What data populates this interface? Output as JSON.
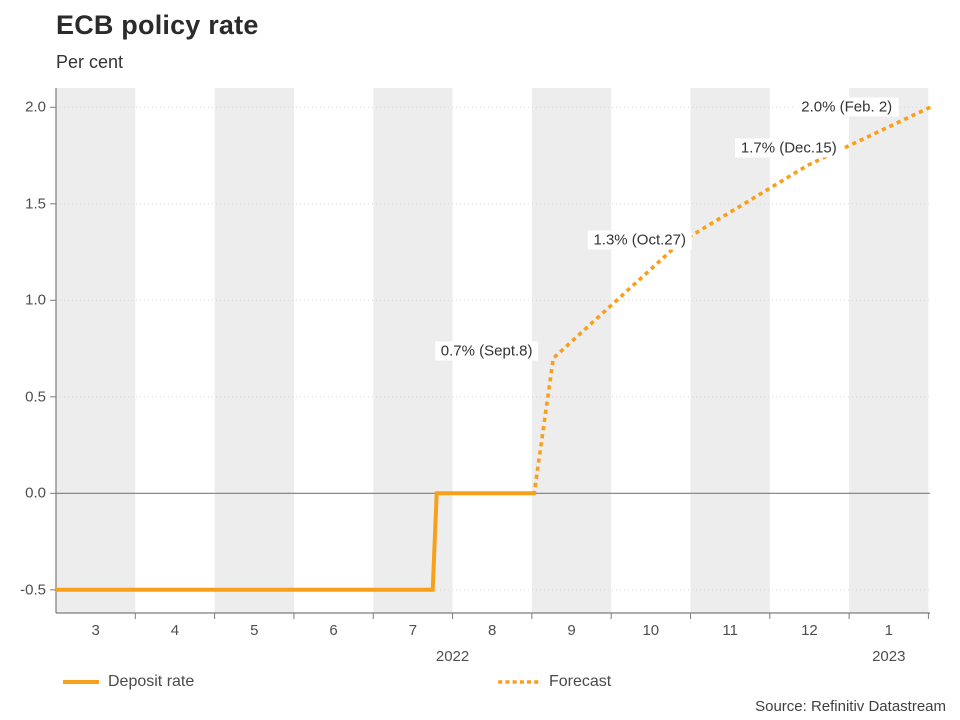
{
  "header": {
    "title": "ECB policy rate",
    "subtitle": "Per cent"
  },
  "source": "Source: Refinitiv Datastream",
  "legend": [
    {
      "label": "Deposit rate",
      "style": "solid"
    },
    {
      "label": "Forecast",
      "style": "dotted"
    }
  ],
  "colors": {
    "line_orange": "#F8A01A",
    "band_gray": "#EDEDED",
    "grid_dotted": "#D8D8D8",
    "zero_line": "#7d7d7d",
    "axis": "#7d7d7d",
    "tick_text": "#4f4f4f"
  },
  "chart_data": {
    "type": "line",
    "title": "ECB policy rate",
    "ylabel": "Per cent",
    "ylim": [
      -0.62,
      2.1
    ],
    "xlim_months": [
      2.5,
      13.52
    ],
    "grid": "horizontal-dotted",
    "legend_position": "bottom",
    "y_ticks": [
      {
        "value": -0.5,
        "label": "-0.5"
      },
      {
        "value": 0.0,
        "label": "0.0"
      },
      {
        "value": 0.5,
        "label": "0.5"
      },
      {
        "value": 1.0,
        "label": "1.0"
      },
      {
        "value": 1.5,
        "label": "1.5"
      },
      {
        "value": 2.0,
        "label": "2.0"
      }
    ],
    "x_ticks": [
      {
        "x": 3,
        "label": "3"
      },
      {
        "x": 4,
        "label": "4"
      },
      {
        "x": 5,
        "label": "5"
      },
      {
        "x": 6,
        "label": "6"
      },
      {
        "x": 7,
        "label": "7"
      },
      {
        "x": 8,
        "label": "8"
      },
      {
        "x": 9,
        "label": "9"
      },
      {
        "x": 10,
        "label": "10"
      },
      {
        "x": 11,
        "label": "11"
      },
      {
        "x": 12,
        "label": "12"
      },
      {
        "x": 13,
        "label": "1"
      }
    ],
    "year_ticks": [
      {
        "x": 7.5,
        "label": "2022"
      },
      {
        "x": 13.0,
        "label": "2023"
      }
    ],
    "shaded_months": [
      3,
      5,
      7,
      9,
      11,
      13
    ],
    "series": [
      {
        "name": "Deposit rate",
        "style": "solid",
        "points": [
          [
            2.5,
            -0.5
          ],
          [
            7.25,
            -0.5
          ],
          [
            7.3,
            0.0
          ],
          [
            8.53,
            0.0
          ]
        ]
      },
      {
        "name": "Forecast",
        "style": "dotted",
        "points": [
          [
            8.53,
            0.0
          ],
          [
            8.77,
            0.7
          ],
          [
            10.37,
            1.3
          ],
          [
            11.98,
            1.7
          ],
          [
            13.52,
            2.0
          ]
        ]
      }
    ],
    "annotations": [
      {
        "text": "0.7% (Sept.8)",
        "x": 7.93,
        "y": 0.74
      },
      {
        "text": "1.3% (Oct.27)",
        "x": 9.86,
        "y": 1.31
      },
      {
        "text": "1.7% (Dec.15)",
        "x": 11.74,
        "y": 1.79
      },
      {
        "text": "2.0% (Feb. 2)",
        "x": 12.47,
        "y": 2.0
      }
    ]
  }
}
